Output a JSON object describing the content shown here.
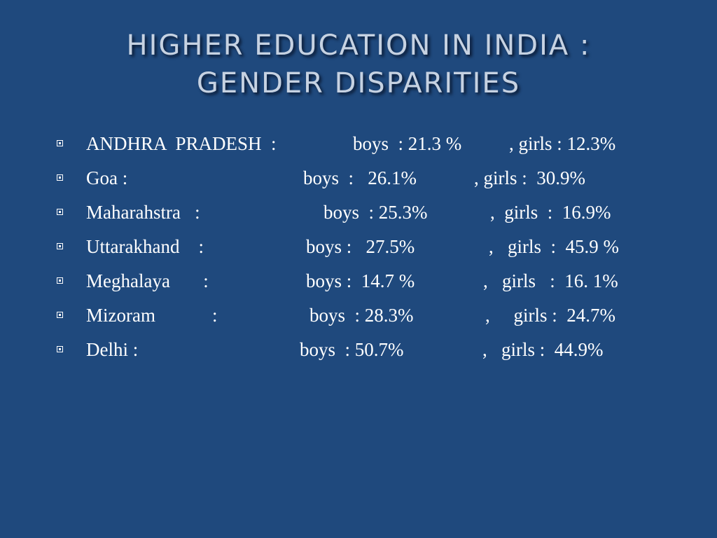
{
  "slide": {
    "title_line1": "HIGHER EDUCATION IN INDIA :",
    "title_line2": "GENDER DISPARITIES",
    "rows": [
      {
        "name": "ANDHRA  PRADESH  :",
        "boys": "boys  : 21.3 %",
        "girls": ", girls : 12.3%"
      },
      {
        "name": "Goa :",
        "boys": "boys  :   26.1%",
        "girls": ", girls :  30.9%"
      },
      {
        "name": "Maharahstra   :",
        "boys": "boys  : 25.3%",
        "girls": ",  girls  :  16.9%"
      },
      {
        "name": "Uttarakhand    :",
        "boys": "boys :   27.5%",
        "girls": ",   girls  :  45.9 %"
      },
      {
        "name": "Meghalaya       :",
        "boys": "boys :  14.7 %",
        "girls": ",   girls   :  16. 1%"
      },
      {
        "name": "Mizoram            :",
        "boys": "boys  : 28.3%",
        "girls": ",     girls :  24.7%"
      },
      {
        "name": "Delhi :",
        "boys": "boys  : 50.7%",
        "girls": ",   girls :  44.9%"
      }
    ]
  }
}
